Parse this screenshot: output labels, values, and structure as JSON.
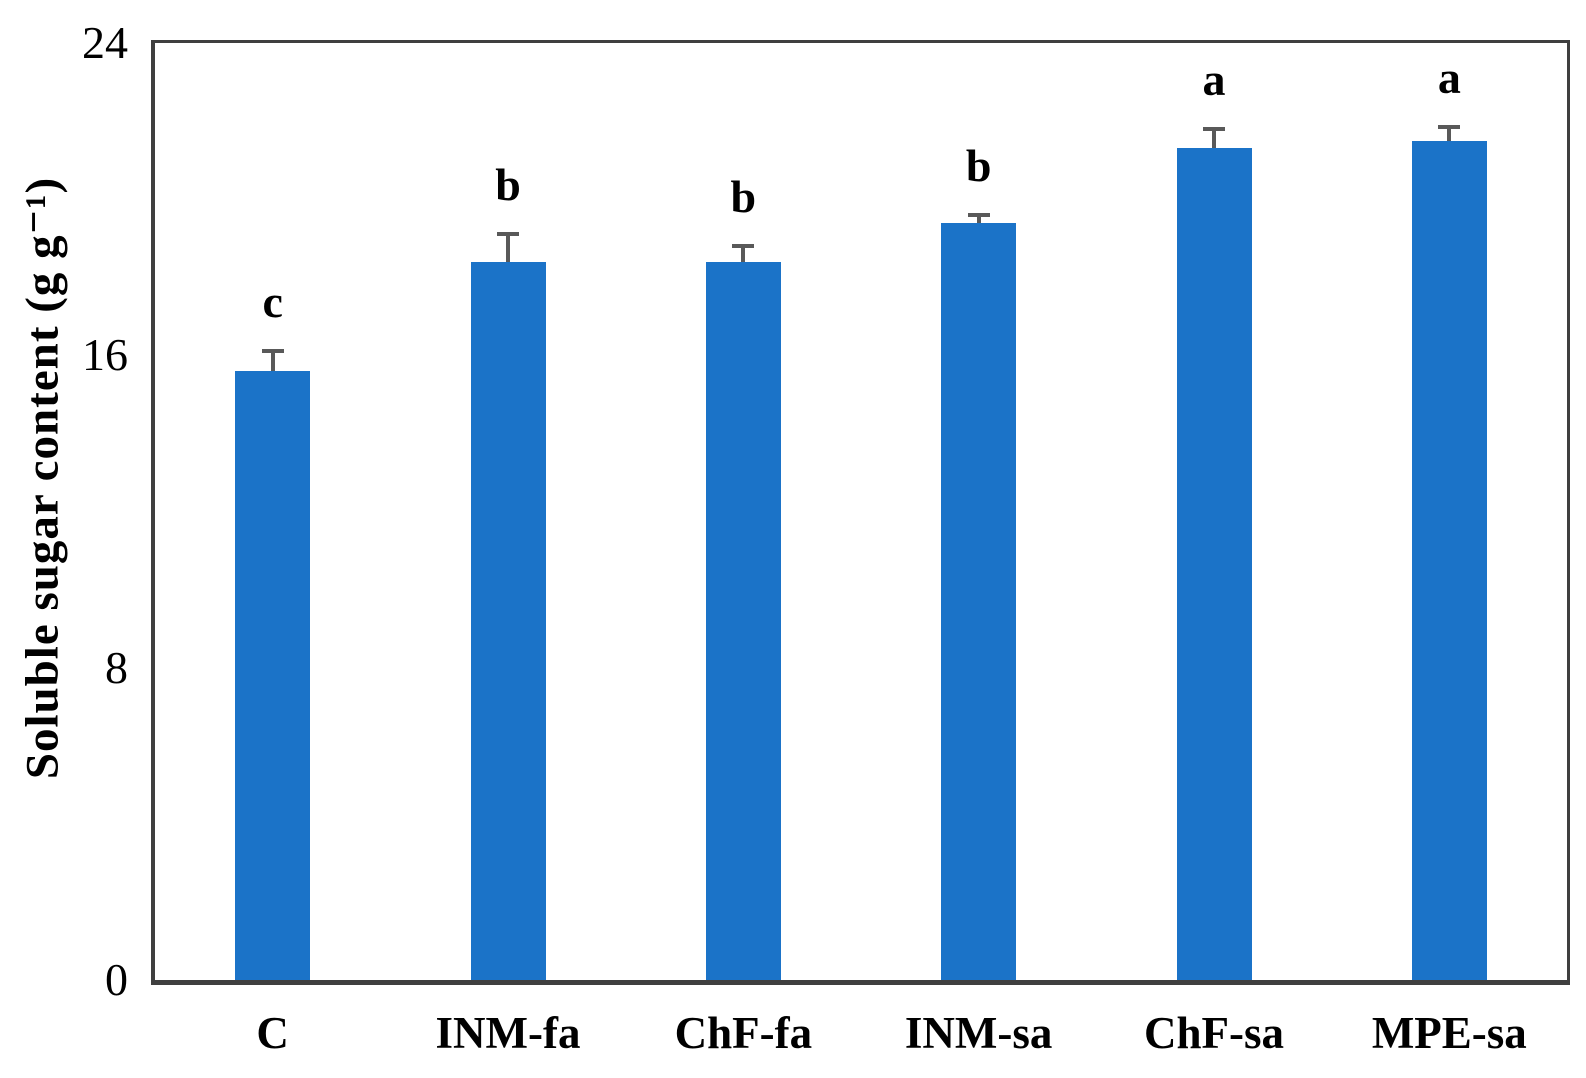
{
  "chart_data": {
    "type": "bar",
    "title": "",
    "xlabel": "",
    "ylabel": "Soluble sugar content (g g⁻¹)",
    "ylim": [
      0,
      24
    ],
    "yticks": [
      0,
      8,
      16,
      24
    ],
    "grid": false,
    "legend": "none",
    "categories": [
      "C",
      "INM-fa",
      "ChF-fa",
      "INM-sa",
      "ChF-sa",
      "MPE-sa"
    ],
    "series": [
      {
        "name": "Soluble sugar content",
        "values": [
          15.6,
          18.4,
          18.4,
          19.4,
          21.3,
          21.5
        ],
        "errors_plus": [
          0.5,
          0.7,
          0.4,
          0.2,
          0.5,
          0.35
        ],
        "sig_letters": [
          "c",
          "b",
          "b",
          "b",
          "a",
          "a"
        ]
      }
    ],
    "colors": {
      "bar": "#1B73C8",
      "axis": "#3F3F3F",
      "error_bar": "#595959",
      "text": "#000000"
    }
  }
}
